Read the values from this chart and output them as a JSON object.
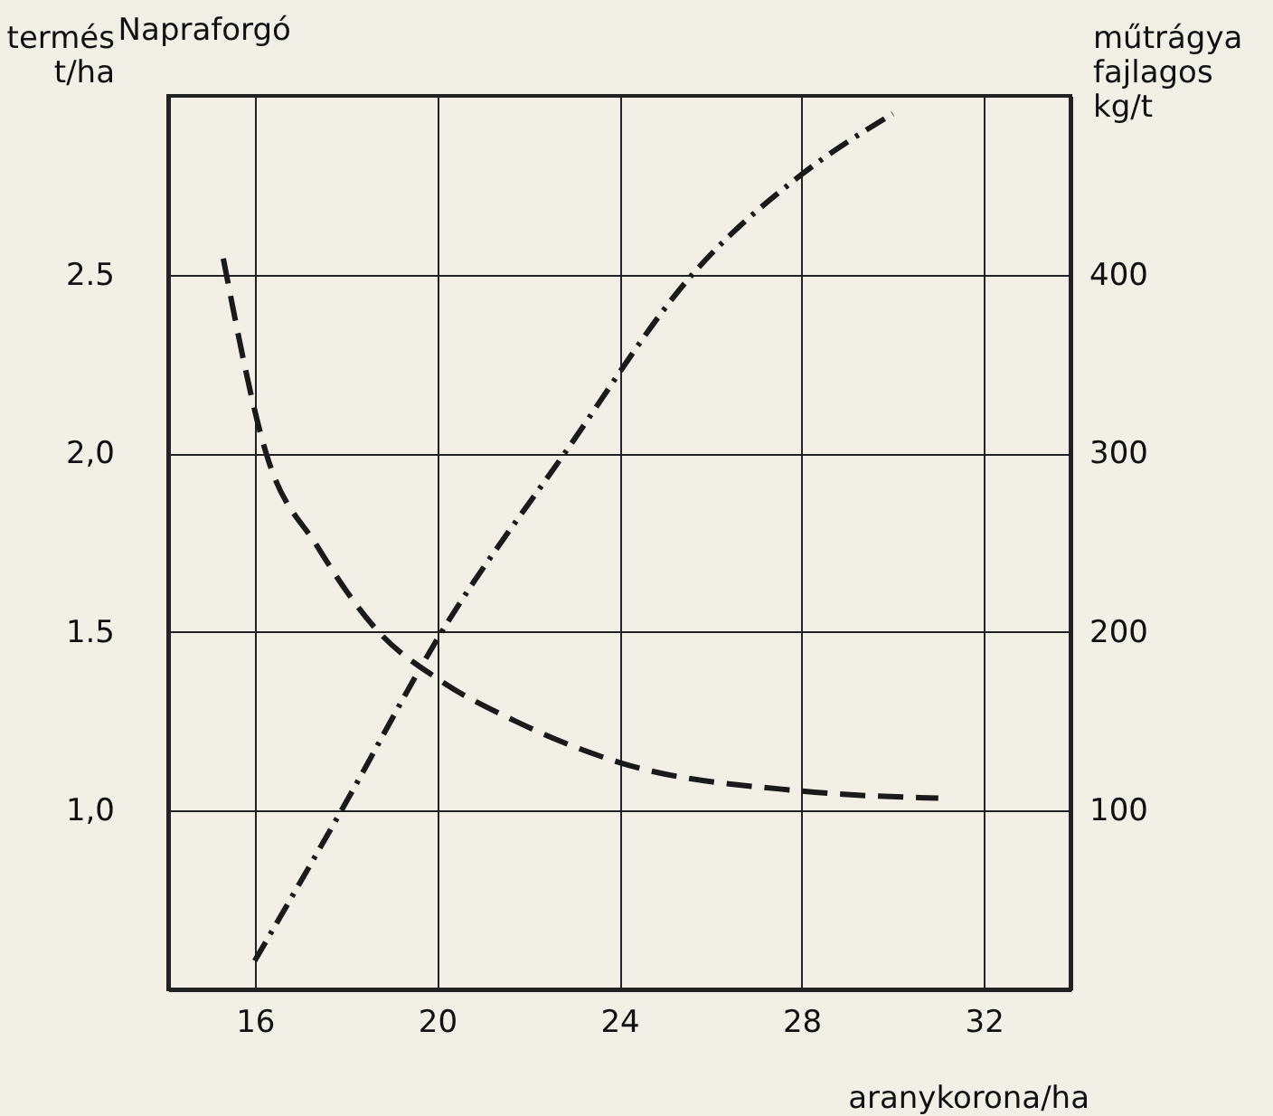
{
  "chart_data": {
    "type": "line",
    "title": "Napraforgó",
    "xlabel": "aranykorona/ha",
    "ylabel": "termés t/ha",
    "y2label": "műtrágya fajlagos kg/t",
    "xlim": [
      14.1,
      33.9
    ],
    "xticks": [
      16,
      20,
      24,
      28,
      32
    ],
    "ylim": [
      0.5,
      3.0
    ],
    "yticks": [
      {
        "value": 1.0,
        "label": "1,0"
      },
      {
        "value": 1.5,
        "label": "1.5"
      },
      {
        "value": 2.0,
        "label": "2,0"
      },
      {
        "value": 2.5,
        "label": "2.5"
      }
    ],
    "y2lim": [
      0,
      500
    ],
    "y2ticks": [
      100,
      200,
      300,
      400
    ],
    "grid": true,
    "marker": "none",
    "series": [
      {
        "color": "#1a1a1a",
        "line_style": "dashdot",
        "x": [
          16.0,
          17.9,
          20.1,
          22.8,
          25.6,
          28.0,
          30.0
        ],
        "values": [
          0.58,
          1.0,
          1.5,
          2.0,
          2.5,
          2.78,
          2.95
        ]
      },
      {
        "color": "#1a1a1a",
        "line_style": "dashed",
        "axis": "y2",
        "x": [
          15.31,
          16.25,
          17.37,
          18.72,
          20.0,
          21.73,
          24.0,
          28.0,
          31.0
        ],
        "values": [
          409,
          300,
          248,
          200,
          174,
          150,
          127,
          111,
          107
        ]
      }
    ]
  }
}
